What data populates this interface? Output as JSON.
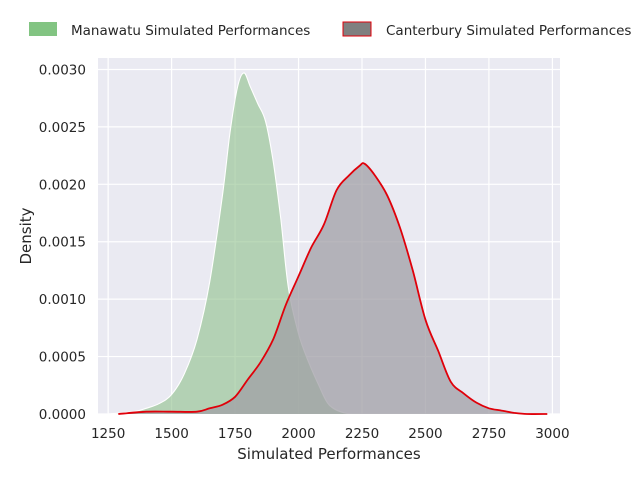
{
  "chart_data": {
    "type": "area",
    "title": "",
    "xlabel": "Simulated Performances",
    "ylabel": "Density",
    "xlim": [
      1210,
      3030
    ],
    "ylim": [
      0,
      0.0031
    ],
    "x_ticks": [
      1250,
      1500,
      1750,
      2000,
      2250,
      2500,
      2750,
      3000
    ],
    "x_tick_labels": [
      "1250",
      "1500",
      "1750",
      "2000",
      "2250",
      "2500",
      "2750",
      "3000"
    ],
    "y_ticks": [
      0,
      0.0005,
      0.001,
      0.0015,
      0.002,
      0.0025,
      0.003
    ],
    "y_tick_labels": [
      "0.0000",
      "0.0005",
      "0.0010",
      "0.0015",
      "0.0020",
      "0.0025",
      "0.0030"
    ],
    "grid": true,
    "legend_position": "top",
    "series": [
      {
        "name": "Manawatu Simulated Performances",
        "fill_color": "#8dbf8b",
        "line_color": "#ffffff",
        "legend_color": "#82c482",
        "fill_opacity": 0.6,
        "points": [
          [
            1250,
            0.0
          ],
          [
            1350,
            2e-05
          ],
          [
            1400,
            5e-05
          ],
          [
            1450,
            9e-05
          ],
          [
            1500,
            0.00017
          ],
          [
            1550,
            0.00035
          ],
          [
            1600,
            0.00065
          ],
          [
            1650,
            0.00115
          ],
          [
            1700,
            0.0019
          ],
          [
            1730,
            0.00245
          ],
          [
            1760,
            0.00285
          ],
          [
            1785,
            0.00297
          ],
          [
            1810,
            0.00285
          ],
          [
            1840,
            0.0027
          ],
          [
            1870,
            0.00255
          ],
          [
            1900,
            0.0022
          ],
          [
            1930,
            0.0017
          ],
          [
            1960,
            0.0011
          ],
          [
            2000,
            0.0007
          ],
          [
            2040,
            0.00045
          ],
          [
            2080,
            0.00025
          ],
          [
            2120,
            8e-05
          ],
          [
            2180,
            1e-05
          ],
          [
            2250,
            0.0
          ],
          [
            2300,
            0.0
          ]
        ]
      },
      {
        "name": "Canterbury Simulated Performances",
        "fill_color": "#a09fa5",
        "line_color": "#e0000a",
        "legend_color": "#808080",
        "legend_edge_color": "#e0000a",
        "fill_opacity": 0.75,
        "points": [
          [
            1290,
            0.0
          ],
          [
            1400,
            2e-05
          ],
          [
            1500,
            2e-05
          ],
          [
            1600,
            2e-05
          ],
          [
            1650,
            5e-05
          ],
          [
            1700,
            8e-05
          ],
          [
            1750,
            0.00015
          ],
          [
            1800,
            0.0003
          ],
          [
            1850,
            0.00045
          ],
          [
            1900,
            0.00065
          ],
          [
            1950,
            0.00095
          ],
          [
            2000,
            0.0012
          ],
          [
            2050,
            0.00145
          ],
          [
            2100,
            0.00165
          ],
          [
            2150,
            0.00195
          ],
          [
            2200,
            0.00208
          ],
          [
            2240,
            0.00216
          ],
          [
            2260,
            0.00218
          ],
          [
            2300,
            0.00208
          ],
          [
            2350,
            0.0019
          ],
          [
            2400,
            0.00162
          ],
          [
            2450,
            0.00125
          ],
          [
            2500,
            0.00082
          ],
          [
            2550,
            0.00055
          ],
          [
            2600,
            0.00028
          ],
          [
            2650,
            0.00018
          ],
          [
            2700,
            0.0001
          ],
          [
            2750,
            5e-05
          ],
          [
            2800,
            3e-05
          ],
          [
            2850,
            1e-05
          ],
          [
            2900,
            0.0
          ],
          [
            2980,
            0.0
          ]
        ]
      }
    ]
  }
}
